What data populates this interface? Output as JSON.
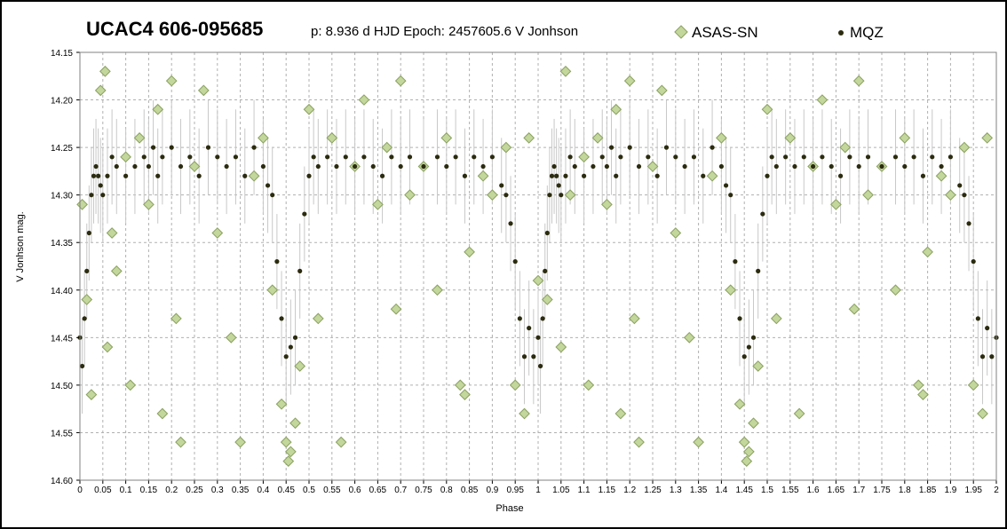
{
  "chart_data": {
    "type": "scatter",
    "title": "UCAC4 606-095685",
    "subtitle": "p: 8.936 d  HJD Epoch: 2457605.6  V Jonhson",
    "xlabel": "Phase",
    "ylabel": "V Jonhson mag.",
    "xlim": [
      0,
      2
    ],
    "ylim": [
      14.15,
      14.6
    ],
    "y_inverted": true,
    "grid": true,
    "legend_position": "top-right",
    "x_ticks": [
      "0",
      "0.05",
      "0.1",
      "0.15",
      "0.2",
      "0.25",
      "0.3",
      "0.35",
      "0.4",
      "0.45",
      "0.5",
      "0.55",
      "0.6",
      "0.65",
      "0.7",
      "0.75",
      "0.8",
      "0.85",
      "0.9",
      "0.95",
      "1",
      "1.05",
      "1.1",
      "1.15",
      "1.2",
      "1.25",
      "1.3",
      "1.35",
      "1.4",
      "1.45",
      "1.5",
      "1.55",
      "1.6",
      "1.65",
      "1.7",
      "1.75",
      "1.8",
      "1.85",
      "1.9",
      "1.95",
      "2"
    ],
    "y_ticks": [
      "14.15",
      "14.20",
      "14.25",
      "14.30",
      "14.35",
      "14.40",
      "14.45",
      "14.50",
      "14.55",
      "14.60"
    ],
    "series": [
      {
        "name": "ASAS-SN",
        "marker": "diamond",
        "color": "#c3d69b",
        "edge_color": "#8aa060",
        "x": [
          0.005,
          0.015,
          0.025,
          0.045,
          0.055,
          0.06,
          0.07,
          0.08,
          0.1,
          0.11,
          0.13,
          0.15,
          0.17,
          0.18,
          0.2,
          0.21,
          0.22,
          0.25,
          0.27,
          0.3,
          0.33,
          0.35,
          0.38,
          0.4,
          0.42,
          0.44,
          0.45,
          0.455,
          0.46,
          0.47,
          0.48,
          0.5,
          0.52,
          0.55,
          0.57,
          0.6,
          0.62,
          0.65,
          0.67,
          0.69,
          0.7,
          0.72,
          0.75,
          0.78,
          0.8,
          0.83,
          0.84,
          0.85,
          0.88,
          0.9,
          0.93,
          0.95,
          0.97,
          0.98,
          1.0,
          1.02,
          1.05,
          1.06,
          1.07,
          1.1,
          1.11,
          1.13,
          1.15,
          1.17,
          1.18,
          1.2,
          1.21,
          1.22,
          1.25,
          1.27,
          1.3,
          1.33,
          1.35,
          1.38,
          1.4,
          1.42,
          1.44,
          1.45,
          1.455,
          1.46,
          1.47,
          1.48,
          1.5,
          1.52,
          1.55,
          1.57,
          1.6,
          1.62,
          1.65,
          1.67,
          1.69,
          1.7,
          1.72,
          1.75,
          1.78,
          1.8,
          1.83,
          1.84,
          1.85,
          1.88,
          1.9,
          1.93,
          1.95,
          1.97,
          1.98
        ],
        "y": [
          14.31,
          14.41,
          14.51,
          14.19,
          14.17,
          14.46,
          14.34,
          14.38,
          14.26,
          14.5,
          14.24,
          14.31,
          14.21,
          14.53,
          14.18,
          14.43,
          14.56,
          14.27,
          14.19,
          14.34,
          14.45,
          14.56,
          14.28,
          14.24,
          14.4,
          14.52,
          14.56,
          14.58,
          14.57,
          14.54,
          14.48,
          14.21,
          14.43,
          14.24,
          14.56,
          14.27,
          14.2,
          14.31,
          14.25,
          14.42,
          14.18,
          14.3,
          14.27,
          14.4,
          14.24,
          14.5,
          14.51,
          14.36,
          14.28,
          14.3,
          14.25,
          14.5,
          14.53,
          14.24,
          14.39,
          14.41,
          14.46,
          14.17,
          14.3,
          14.26,
          14.5,
          14.24,
          14.31,
          14.21,
          14.53,
          14.18,
          14.43,
          14.56,
          14.27,
          14.19,
          14.34,
          14.45,
          14.56,
          14.28,
          14.24,
          14.4,
          14.52,
          14.56,
          14.58,
          14.57,
          14.54,
          14.48,
          14.21,
          14.43,
          14.24,
          14.53,
          14.27,
          14.2,
          14.31,
          14.25,
          14.42,
          14.18,
          14.3,
          14.27,
          14.4,
          14.24,
          14.5,
          14.51,
          14.36,
          14.28,
          14.3,
          14.25,
          14.5,
          14.53,
          14.24
        ]
      },
      {
        "name": "MQZ",
        "marker": "circle",
        "color": "#2b2b0f",
        "x": [
          0.0,
          0.005,
          0.01,
          0.015,
          0.02,
          0.025,
          0.03,
          0.035,
          0.04,
          0.045,
          0.05,
          0.06,
          0.07,
          0.08,
          0.1,
          0.12,
          0.14,
          0.15,
          0.16,
          0.17,
          0.18,
          0.2,
          0.22,
          0.24,
          0.26,
          0.28,
          0.3,
          0.32,
          0.34,
          0.36,
          0.38,
          0.4,
          0.41,
          0.42,
          0.43,
          0.44,
          0.45,
          0.46,
          0.47,
          0.48,
          0.49,
          0.5,
          0.51,
          0.52,
          0.54,
          0.56,
          0.58,
          0.6,
          0.62,
          0.64,
          0.66,
          0.68,
          0.7,
          0.72,
          0.75,
          0.78,
          0.8,
          0.82,
          0.84,
          0.86,
          0.88,
          0.9,
          0.92,
          0.93,
          0.94,
          0.95,
          0.96,
          0.97,
          0.98,
          0.99,
          1.0,
          1.005,
          1.01,
          1.015,
          1.02,
          1.025,
          1.03,
          1.035,
          1.04,
          1.045,
          1.05,
          1.06,
          1.07,
          1.08,
          1.1,
          1.12,
          1.14,
          1.15,
          1.16,
          1.17,
          1.18,
          1.2,
          1.22,
          1.24,
          1.26,
          1.28,
          1.3,
          1.32,
          1.34,
          1.36,
          1.38,
          1.4,
          1.41,
          1.42,
          1.43,
          1.44,
          1.45,
          1.46,
          1.47,
          1.48,
          1.49,
          1.5,
          1.51,
          1.52,
          1.54,
          1.56,
          1.58,
          1.6,
          1.62,
          1.64,
          1.66,
          1.68,
          1.7,
          1.72,
          1.75,
          1.78,
          1.8,
          1.82,
          1.84,
          1.86,
          1.88,
          1.9,
          1.92,
          1.93,
          1.94,
          1.95,
          1.96,
          1.97,
          1.98,
          1.99,
          2.0
        ],
        "y": [
          14.45,
          14.48,
          14.43,
          14.38,
          14.34,
          14.3,
          14.28,
          14.27,
          14.28,
          14.29,
          14.3,
          14.28,
          14.26,
          14.27,
          14.28,
          14.27,
          14.26,
          14.27,
          14.25,
          14.28,
          14.26,
          14.25,
          14.27,
          14.26,
          14.28,
          14.25,
          14.26,
          14.27,
          14.26,
          14.28,
          14.25,
          14.27,
          14.29,
          14.3,
          14.37,
          14.43,
          14.47,
          14.46,
          14.45,
          14.38,
          14.32,
          14.28,
          14.26,
          14.27,
          14.26,
          14.27,
          14.26,
          14.27,
          14.26,
          14.27,
          14.28,
          14.26,
          14.27,
          14.26,
          14.27,
          14.26,
          14.27,
          14.26,
          14.28,
          14.26,
          14.27,
          14.26,
          14.29,
          14.3,
          14.33,
          14.37,
          14.43,
          14.47,
          14.44,
          14.47,
          14.45,
          14.48,
          14.43,
          14.38,
          14.34,
          14.3,
          14.28,
          14.27,
          14.28,
          14.29,
          14.3,
          14.28,
          14.26,
          14.27,
          14.28,
          14.27,
          14.26,
          14.27,
          14.25,
          14.28,
          14.26,
          14.25,
          14.27,
          14.26,
          14.28,
          14.25,
          14.26,
          14.27,
          14.26,
          14.28,
          14.25,
          14.27,
          14.29,
          14.3,
          14.37,
          14.43,
          14.47,
          14.46,
          14.45,
          14.38,
          14.32,
          14.28,
          14.26,
          14.27,
          14.26,
          14.27,
          14.26,
          14.27,
          14.26,
          14.27,
          14.28,
          14.26,
          14.27,
          14.26,
          14.27,
          14.26,
          14.27,
          14.26,
          14.28,
          14.26,
          14.27,
          14.26,
          14.29,
          14.3,
          14.33,
          14.37,
          14.43,
          14.47,
          14.44,
          14.47,
          14.45
        ]
      }
    ]
  }
}
